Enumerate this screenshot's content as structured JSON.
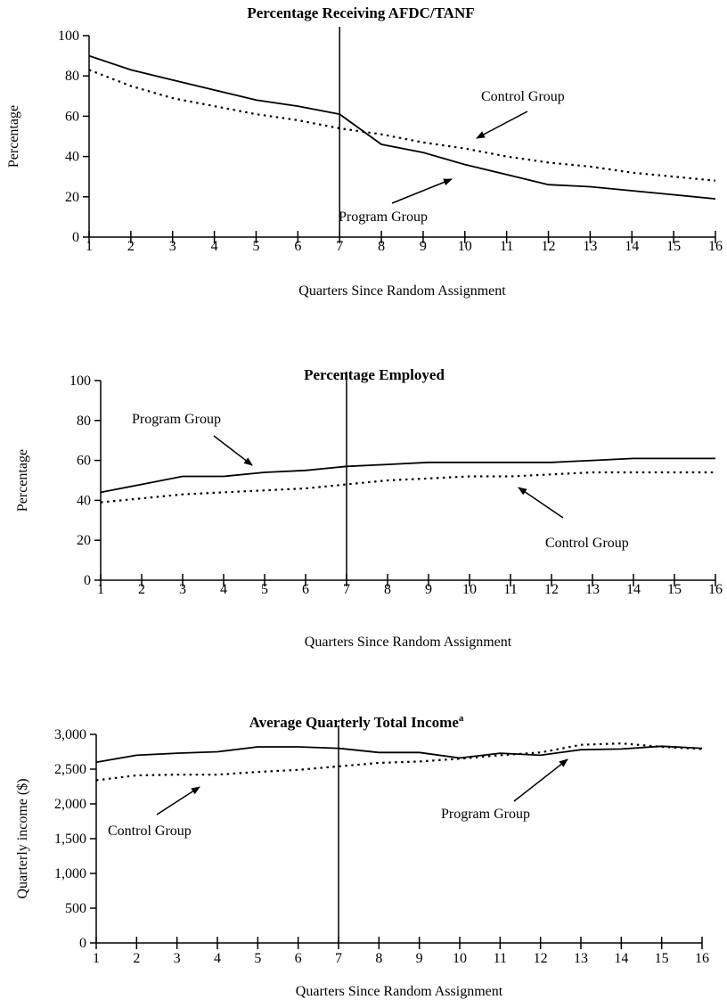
{
  "chart_data": [
    {
      "type": "line",
      "title": "Percentage Receiving AFDC/TANF",
      "title_superscript": "",
      "xlabel": "Quarters Since Random Assignment",
      "ylabel": "Percentage",
      "x": [
        1,
        2,
        3,
        4,
        5,
        6,
        7,
        8,
        9,
        10,
        11,
        12,
        13,
        14,
        15,
        16
      ],
      "xlim": [
        1,
        16
      ],
      "ylim": [
        0,
        100
      ],
      "yticks": [
        0,
        20,
        40,
        60,
        80,
        100
      ],
      "ytick_labels": [
        "0",
        "20",
        "40",
        "60",
        "80",
        "100"
      ],
      "reference_line_x": 7,
      "grid": false,
      "legend": "none",
      "series": [
        {
          "name": "Program Group",
          "style": "solid",
          "values": [
            90,
            83,
            78,
            73,
            68,
            65,
            61,
            46,
            42,
            36,
            31,
            26,
            25,
            23,
            21,
            19
          ]
        },
        {
          "name": "Control Group",
          "style": "dotted",
          "values": [
            83,
            75,
            69,
            65,
            61,
            58,
            54,
            51,
            47,
            44,
            40,
            37,
            35,
            32,
            30,
            28
          ]
        }
      ],
      "annotations": [
        {
          "text": "Control Group",
          "series": "Control Group"
        },
        {
          "text": "Program Group",
          "series": "Program Group"
        }
      ]
    },
    {
      "type": "line",
      "title": "Percentage Employed",
      "title_superscript": "",
      "xlabel": "Quarters Since Random Assignment",
      "ylabel": "Percentage",
      "x": [
        1,
        2,
        3,
        4,
        5,
        6,
        7,
        8,
        9,
        10,
        11,
        12,
        13,
        14,
        15,
        16
      ],
      "xlim": [
        1,
        16
      ],
      "ylim": [
        0,
        100
      ],
      "yticks": [
        0,
        20,
        40,
        60,
        80,
        100
      ],
      "ytick_labels": [
        "0",
        "20",
        "40",
        "60",
        "80",
        "100"
      ],
      "reference_line_x": 7,
      "grid": false,
      "legend": "none",
      "series": [
        {
          "name": "Program Group",
          "style": "solid",
          "values": [
            44,
            48,
            52,
            52,
            54,
            55,
            57,
            58,
            59,
            59,
            59,
            59,
            60,
            61,
            61,
            61
          ]
        },
        {
          "name": "Control Group",
          "style": "dotted",
          "values": [
            39,
            41,
            43,
            44,
            45,
            46,
            48,
            50,
            51,
            52,
            52,
            53,
            54,
            54,
            54,
            54
          ]
        }
      ],
      "annotations": [
        {
          "text": "Program Group",
          "series": "Program Group"
        },
        {
          "text": "Control Group",
          "series": "Control Group"
        }
      ]
    },
    {
      "type": "line",
      "title": "Average Quarterly Total Income",
      "title_superscript": "a",
      "xlabel": "Quarters Since Random Assignment",
      "ylabel": "Quarterly income ($)",
      "x": [
        1,
        2,
        3,
        4,
        5,
        6,
        7,
        8,
        9,
        10,
        11,
        12,
        13,
        14,
        15,
        16
      ],
      "xlim": [
        1,
        16
      ],
      "ylim": [
        0,
        3000
      ],
      "yticks": [
        0,
        500,
        1000,
        1500,
        2000,
        2500,
        3000
      ],
      "ytick_labels": [
        "0",
        "500",
        "1,000",
        "1,500",
        "2,000",
        "2,500",
        "3,000"
      ],
      "reference_line_x": 7,
      "grid": false,
      "legend": "none",
      "series": [
        {
          "name": "Program Group",
          "style": "solid",
          "values": [
            2600,
            2700,
            2730,
            2750,
            2820,
            2820,
            2800,
            2740,
            2740,
            2660,
            2730,
            2700,
            2780,
            2790,
            2830,
            2800
          ]
        },
        {
          "name": "Control Group",
          "style": "dotted",
          "values": [
            2340,
            2410,
            2420,
            2420,
            2460,
            2490,
            2540,
            2590,
            2610,
            2650,
            2700,
            2740,
            2850,
            2870,
            2820,
            2790
          ]
        }
      ],
      "annotations": [
        {
          "text": "Control Group",
          "series": "Control Group"
        },
        {
          "text": "Program Group",
          "series": "Program Group"
        }
      ]
    }
  ]
}
